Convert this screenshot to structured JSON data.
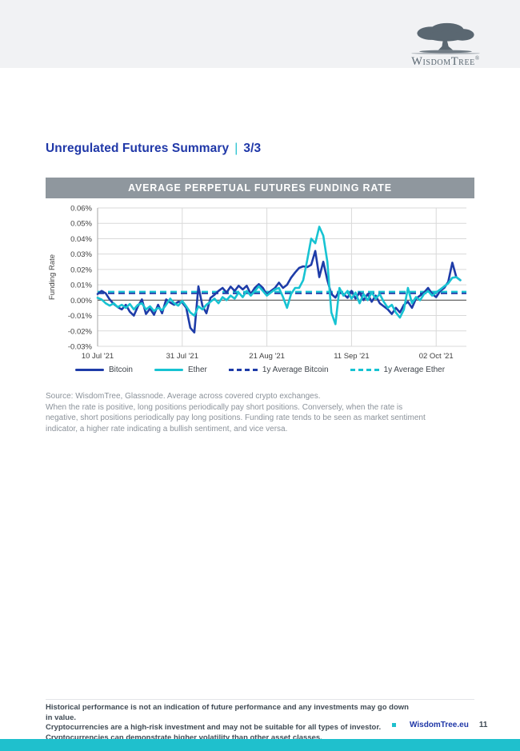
{
  "page": {
    "background_top_band": "#f1f2f4",
    "accent_teal": "#1fc0cd",
    "brand_blue": "#2038a8"
  },
  "header": {
    "logo_text": "WisdomTree",
    "logo_reg": "®"
  },
  "title": {
    "text": "Unregulated Futures Summary",
    "separator": "|",
    "page_indicator": "3/3"
  },
  "chart_data": {
    "type": "line",
    "title": "AVERAGE PERPETUAL FUTURES FUNDING RATE",
    "ylabel": "Funding Rate",
    "grid": true,
    "legend_position": "bottom",
    "ylim_percent": [
      -0.03,
      0.06
    ],
    "y_tick_values": [
      0.06,
      0.05,
      0.04,
      0.03,
      0.02,
      0.01,
      0.0,
      -0.01,
      -0.02,
      -0.03
    ],
    "y_tick_labels": [
      "0.06%",
      "0.05%",
      "0.04%",
      "0.03%",
      "0.02%",
      "0.01%",
      "0.00%",
      "-0.01%",
      "-0.02%",
      "-0.03%"
    ],
    "x_unit": "days since 10 Jul '21",
    "x_range_days": [
      0,
      91.5
    ],
    "x_tick_days": [
      0,
      21,
      42,
      63,
      84
    ],
    "x_tick_labels": [
      "10 Jul '21",
      "31 Jul '21",
      "21 Aug '21",
      "11 Sep '21",
      "02 Oct '21"
    ],
    "values_unit": "percent",
    "series": [
      {
        "name": "Bitcoin",
        "color": "#1e3ca8",
        "style": "solid",
        "points": [
          [
            0,
            0.004
          ],
          [
            1,
            0.006
          ],
          [
            2,
            0.0045
          ],
          [
            3,
            0.0005
          ],
          [
            4,
            -0.0025
          ],
          [
            5,
            -0.0045
          ],
          [
            6,
            -0.006
          ],
          [
            7,
            -0.003
          ],
          [
            8,
            -0.0075
          ],
          [
            9,
            -0.01
          ],
          [
            10,
            -0.004
          ],
          [
            11,
            0.0005
          ],
          [
            12,
            -0.009
          ],
          [
            13,
            -0.0055
          ],
          [
            14,
            -0.0095
          ],
          [
            15,
            -0.003
          ],
          [
            16,
            -0.0085
          ],
          [
            17,
            0.0005
          ],
          [
            18,
            -0.0015
          ],
          [
            19,
            -0.003
          ],
          [
            20,
            -0.001
          ],
          [
            21,
            -0.0015
          ],
          [
            22,
            -0.005
          ],
          [
            23,
            -0.018
          ],
          [
            24,
            -0.021
          ],
          [
            25,
            0.009
          ],
          [
            26,
            -0.0035
          ],
          [
            27,
            -0.0085
          ],
          [
            28,
            0.0015
          ],
          [
            29,
            0.0035
          ],
          [
            30,
            0.006
          ],
          [
            31,
            0.008
          ],
          [
            32,
            0.005
          ],
          [
            33,
            0.0088
          ],
          [
            34,
            0.006
          ],
          [
            35,
            0.0094
          ],
          [
            36,
            0.007
          ],
          [
            37,
            0.0094
          ],
          [
            38,
            0.004
          ],
          [
            39,
            0.008
          ],
          [
            40,
            0.0104
          ],
          [
            41,
            0.008
          ],
          [
            42,
            0.0036
          ],
          [
            43,
            0.006
          ],
          [
            44,
            0.008
          ],
          [
            45,
            0.0114
          ],
          [
            46,
            0.008
          ],
          [
            47,
            0.01
          ],
          [
            48,
            0.0146
          ],
          [
            49,
            0.018
          ],
          [
            50,
            0.021
          ],
          [
            51,
            0.022
          ],
          [
            52,
            0.0215
          ],
          [
            53,
            0.023
          ],
          [
            54,
            0.032
          ],
          [
            55,
            0.015
          ],
          [
            56,
            0.025
          ],
          [
            57,
            0.013
          ],
          [
            58,
            0.004
          ],
          [
            59,
            0.0017
          ],
          [
            60,
            0.006
          ],
          [
            61,
            0.004
          ],
          [
            62,
            0.0016
          ],
          [
            63,
            0.006
          ],
          [
            64,
            0.001
          ],
          [
            65,
            0.005
          ],
          [
            66,
            0.0
          ],
          [
            67,
            0.004
          ],
          [
            68,
            -0.001
          ],
          [
            69,
            0.003
          ],
          [
            70,
            -0.002
          ],
          [
            71,
            -0.004
          ],
          [
            72,
            -0.006
          ],
          [
            73,
            -0.009
          ],
          [
            74,
            -0.005
          ],
          [
            75,
            -0.008
          ],
          [
            76,
            -0.003
          ],
          [
            77,
            -0.001
          ],
          [
            78,
            -0.005
          ],
          [
            79,
            0.001
          ],
          [
            80,
            0.003
          ],
          [
            81,
            0.005
          ],
          [
            82,
            0.008
          ],
          [
            83,
            0.004
          ],
          [
            84,
            0.002
          ],
          [
            85,
            0.006
          ],
          [
            86,
            0.008
          ],
          [
            87,
            0.012
          ],
          [
            88,
            0.0244
          ],
          [
            89,
            0.015
          ],
          [
            90,
            0.013
          ]
        ]
      },
      {
        "name": "Ether",
        "color": "#17c3d2",
        "style": "solid",
        "points": [
          [
            0,
            0.0016
          ],
          [
            1,
            0.0005
          ],
          [
            2,
            -0.002
          ],
          [
            3,
            -0.0035
          ],
          [
            4,
            -0.002
          ],
          [
            5,
            -0.0045
          ],
          [
            6,
            -0.003
          ],
          [
            7,
            -0.005
          ],
          [
            8,
            -0.0025
          ],
          [
            9,
            -0.006
          ],
          [
            10,
            -0.003
          ],
          [
            11,
            -0.002
          ],
          [
            12,
            -0.006
          ],
          [
            13,
            -0.004
          ],
          [
            14,
            -0.007
          ],
          [
            15,
            -0.005
          ],
          [
            16,
            -0.0065
          ],
          [
            17,
            -0.003
          ],
          [
            18,
            0.001
          ],
          [
            19,
            -0.002
          ],
          [
            20,
            -0.0035
          ],
          [
            21,
            -0.0005
          ],
          [
            22,
            -0.004
          ],
          [
            23,
            -0.008
          ],
          [
            24,
            -0.01
          ],
          [
            25,
            -0.004
          ],
          [
            26,
            -0.006
          ],
          [
            27,
            -0.003
          ],
          [
            28,
            -0.001
          ],
          [
            29,
            0.001
          ],
          [
            30,
            -0.002
          ],
          [
            31,
            0.002
          ],
          [
            32,
            0.0
          ],
          [
            33,
            0.003
          ],
          [
            34,
            0.001
          ],
          [
            35,
            0.005
          ],
          [
            36,
            0.002
          ],
          [
            37,
            0.006
          ],
          [
            38,
            0.003
          ],
          [
            39,
            0.006
          ],
          [
            40,
            0.009
          ],
          [
            41,
            0.006
          ],
          [
            42,
            0.003
          ],
          [
            43,
            0.005
          ],
          [
            44,
            0.007
          ],
          [
            45,
            0.008
          ],
          [
            46,
            0.002
          ],
          [
            47,
            -0.005
          ],
          [
            48,
            0.004
          ],
          [
            49,
            0.008
          ],
          [
            50,
            0.008
          ],
          [
            51,
            0.013
          ],
          [
            52,
            0.026
          ],
          [
            53,
            0.04
          ],
          [
            54,
            0.037
          ],
          [
            55,
            0.0478
          ],
          [
            56,
            0.042
          ],
          [
            57,
            0.025
          ],
          [
            58,
            -0.008
          ],
          [
            59,
            -0.0156
          ],
          [
            60,
            0.008
          ],
          [
            61,
            0.003
          ],
          [
            62,
            0.006
          ],
          [
            63,
            0.001
          ],
          [
            64,
            0.005
          ],
          [
            65,
            -0.002
          ],
          [
            66,
            0.004
          ],
          [
            67,
            0.0
          ],
          [
            68,
            0.005
          ],
          [
            69,
            0.001
          ],
          [
            70,
            0.004
          ],
          [
            71,
            -0.001
          ],
          [
            72,
            -0.005
          ],
          [
            73,
            -0.003
          ],
          [
            74,
            -0.008
          ],
          [
            75,
            -0.0113
          ],
          [
            76,
            -0.006
          ],
          [
            77,
            0.008
          ],
          [
            78,
            -0.002
          ],
          [
            79,
            0.002
          ],
          [
            80,
            0.0
          ],
          [
            81,
            0.004
          ],
          [
            82,
            0.006
          ],
          [
            83,
            0.003
          ],
          [
            84,
            0.005
          ],
          [
            85,
            0.007
          ],
          [
            86,
            0.009
          ],
          [
            87,
            0.011
          ],
          [
            88,
            0.0146
          ],
          [
            89,
            0.015
          ],
          [
            90,
            0.013
          ]
        ]
      },
      {
        "name": "1y Average Bitcoin",
        "color": "#1e3ca8",
        "style": "dashed",
        "value": 0.0045
      },
      {
        "name": "1y Average Ether",
        "color": "#17c3d2",
        "style": "dashed",
        "value": 0.0055
      }
    ]
  },
  "source_note": {
    "lines": [
      "Source: WisdomTree, Glassnode. Average across covered crypto exchanges.",
      "When the rate is positive, long positions periodically pay short positions. Conversely, when the rate is",
      "negative, short positions periodically pay long positions. Funding rate tends to be seen as market sentiment",
      "indicator, a higher rate indicating a bullish sentiment, and vice versa."
    ]
  },
  "footer": {
    "lines": [
      "Historical performance is not an indication of future performance and any investments may go down in value.",
      "Cryptocurrencies are a high-risk investment and may not be suitable for all types of investor.",
      "Cryptocurrencies can demonstrate higher volatility than other asset classes."
    ],
    "site": "WisdomTree.eu",
    "page_number": "11"
  }
}
